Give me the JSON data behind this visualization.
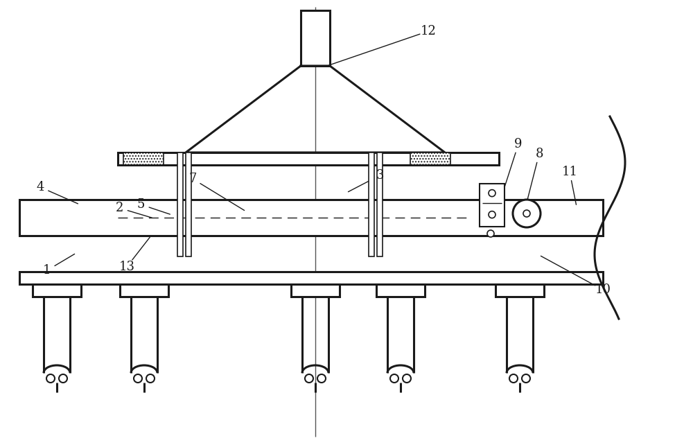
{
  "bg_color": "#ffffff",
  "line_color": "#1a1a1a",
  "lw": 1.8,
  "fig_width": 10.0,
  "fig_height": 6.42,
  "labels_info": [
    [
      "1",
      68,
      390,
      110,
      365
    ],
    [
      "2",
      172,
      300,
      222,
      315
    ],
    [
      "3",
      548,
      253,
      500,
      278
    ],
    [
      "4",
      58,
      270,
      115,
      295
    ],
    [
      "5",
      203,
      295,
      248,
      310
    ],
    [
      "7",
      278,
      258,
      355,
      305
    ],
    [
      "8",
      778,
      222,
      758,
      300
    ],
    [
      "9",
      748,
      208,
      720,
      295
    ],
    [
      "10",
      870,
      418,
      778,
      368
    ],
    [
      "11",
      822,
      248,
      832,
      298
    ],
    [
      "12",
      618,
      45,
      472,
      95
    ],
    [
      "13",
      183,
      385,
      218,
      340
    ]
  ]
}
